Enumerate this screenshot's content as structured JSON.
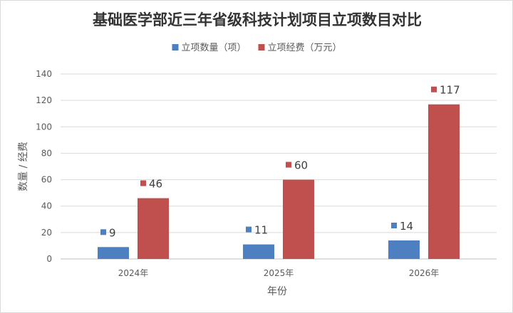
{
  "chart_data": {
    "type": "bar",
    "title": "基础医学部近三年省级科技计划项目立项数目对比",
    "xlabel": "年份",
    "ylabel": "数量 / 经费",
    "categories": [
      "2024年",
      "2025年",
      "2026年"
    ],
    "series": [
      {
        "name": "立项数量（项）",
        "color": "#4e7fc1",
        "values": [
          9,
          11,
          14
        ]
      },
      {
        "name": "立项经费（万元）",
        "color": "#c0504d",
        "values": [
          46,
          60,
          117
        ]
      }
    ],
    "ylim": [
      0,
      140
    ],
    "yticks": [
      0,
      20,
      40,
      60,
      80,
      100,
      120,
      140
    ],
    "grid": true,
    "legend": "top-center"
  }
}
